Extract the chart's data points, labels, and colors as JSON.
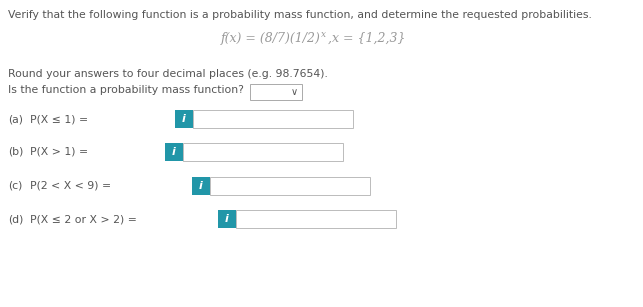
{
  "title": "Verify that the following function is a probability mass function, and determine the requested probabilities.",
  "formula_prefix": "f(x) = (8/7)(1/2)",
  "formula_superscript": "x",
  "formula_suffix": " ,x = {1,2,3}",
  "round_note": "Round your answers to four decimal places (e.g. 98.7654).",
  "pmf_question": "Is the function a probability mass function?",
  "parts": [
    {
      "label": "(a)",
      "expr": "P(X ≤ 1) ="
    },
    {
      "label": "(b)",
      "expr": "P(X > 1) ="
    },
    {
      "label": "(c)",
      "expr": "P(2 < X < 9) ="
    },
    {
      "label": "(d)",
      "expr": "P(X ≤ 2 or X > 2) ="
    }
  ],
  "bg_color": "#ffffff",
  "text_color": "#555555",
  "formula_color": "#999999",
  "blue_btn_color": "#2196a8",
  "blue_btn_text": "i",
  "box_border": "#bbbbbb"
}
